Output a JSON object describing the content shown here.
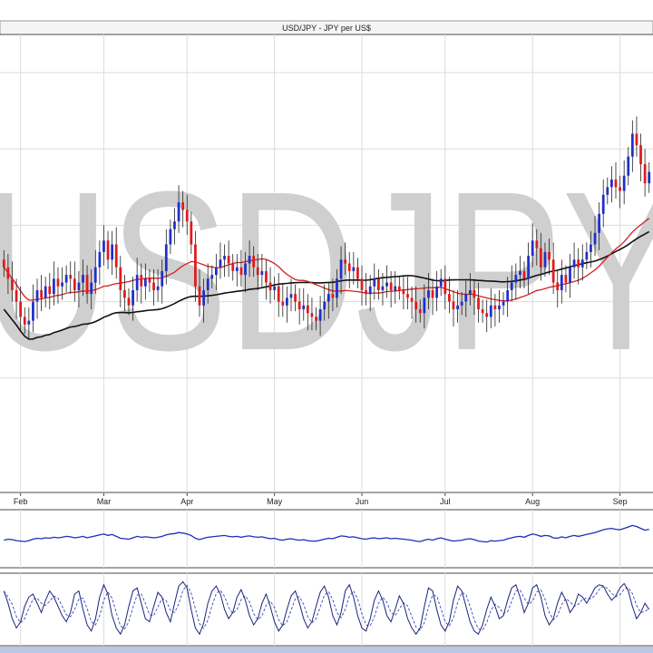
{
  "title": "USD/JPY - JPY per US$",
  "watermark": "USDJPY",
  "colors": {
    "background": "#ffffff",
    "frame": "#4a4a4a",
    "grid": "#dcdcdc",
    "bull": "#1f2fcc",
    "bear": "#e01b1b",
    "wick": "#222222",
    "ma_fast": "#d42020",
    "ma_slow": "#111111",
    "watermark": "#cfcfcf",
    "rsi": "#1d2db8",
    "stoch_k": "#1a237e",
    "stoch_d": "#3949ab",
    "bottom_bar": "#b9c7e6"
  },
  "chart_data": [
    {
      "type": "candlestick",
      "title": "USD/JPY - JPY per US$",
      "x_tick_labels": [
        "Feb",
        "Mar",
        "Apr",
        "May",
        "Jun",
        "Jul",
        "Aug",
        "Sep"
      ],
      "x_tick_index": [
        4,
        24,
        44,
        65,
        86,
        106,
        127,
        148
      ],
      "grid": true,
      "ylim": [
        96,
        108
      ],
      "series_close": [
        101.9,
        101.6,
        101.3,
        101.0,
        100.6,
        100.4,
        100.5,
        101.0,
        101.3,
        101.1,
        101.4,
        101.2,
        101.6,
        101.4,
        101.5,
        101.7,
        101.6,
        101.3,
        101.5,
        101.7,
        101.2,
        101.5,
        101.9,
        102.3,
        102.6,
        102.1,
        102.5,
        101.9,
        101.3,
        101.1,
        100.9,
        101.3,
        101.7,
        101.4,
        101.6,
        101.5,
        101.3,
        101.4,
        101.8,
        102.5,
        102.9,
        103.1,
        103.6,
        103.4,
        103.1,
        102.5,
        101.4,
        100.9,
        101.3,
        101.6,
        101.7,
        101.9,
        102.1,
        102.2,
        102.0,
        101.8,
        101.9,
        101.7,
        102.0,
        102.2,
        101.9,
        101.7,
        101.8,
        101.5,
        101.3,
        101.4,
        101.0,
        100.9,
        101.1,
        101.2,
        101.0,
        100.8,
        100.9,
        100.7,
        100.6,
        100.5,
        100.8,
        101.0,
        101.2,
        101.1,
        101.6,
        102.1,
        102.0,
        101.8,
        101.9,
        101.6,
        101.3,
        101.2,
        101.4,
        101.6,
        101.3,
        101.4,
        101.5,
        101.3,
        101.4,
        101.3,
        101.2,
        101.1,
        101.0,
        100.8,
        100.7,
        101.1,
        101.3,
        101.1,
        101.4,
        101.6,
        101.2,
        101.0,
        100.8,
        100.9,
        101.0,
        101.2,
        101.3,
        101.1,
        100.8,
        100.7,
        100.6,
        100.9,
        100.8,
        100.9,
        101.0,
        101.3,
        101.5,
        101.7,
        101.8,
        101.6,
        102.2,
        102.6,
        102.4,
        101.9,
        102.3,
        102.1,
        101.5,
        101.3,
        101.7,
        101.5,
        101.9,
        102.1,
        101.9,
        102.1,
        102.3,
        102.5,
        102.8,
        103.3,
        103.8,
        104.0,
        104.2,
        104.0,
        103.9,
        104.3,
        104.8,
        105.4,
        105.1,
        104.6,
        104.1,
        104.4
      ]
    },
    {
      "type": "line",
      "name": "RSI",
      "ylim": [
        0,
        100
      ],
      "values": [
        47,
        49,
        48,
        46,
        45,
        44,
        46,
        49,
        51,
        50,
        52,
        51,
        53,
        52,
        53,
        55,
        54,
        52,
        53,
        55,
        52,
        54,
        56,
        58,
        60,
        57,
        59,
        55,
        51,
        50,
        49,
        52,
        55,
        53,
        54,
        53,
        52,
        53,
        55,
        58,
        60,
        61,
        63,
        62,
        60,
        57,
        51,
        48,
        51,
        53,
        54,
        55,
        56,
        57,
        55,
        54,
        55,
        53,
        55,
        56,
        54,
        53,
        54,
        52,
        50,
        51,
        48,
        47,
        49,
        50,
        48,
        47,
        48,
        46,
        45,
        45,
        47,
        49,
        51,
        50,
        53,
        56,
        55,
        53,
        54,
        52,
        50,
        49,
        51,
        52,
        50,
        51,
        52,
        50,
        51,
        50,
        49,
        48,
        47,
        45,
        44,
        47,
        49,
        47,
        50,
        52,
        49,
        47,
        45,
        46,
        47,
        49,
        50,
        48,
        45,
        44,
        43,
        46,
        45,
        46,
        47,
        50,
        52,
        54,
        55,
        53,
        57,
        60,
        58,
        55,
        57,
        56,
        52,
        51,
        54,
        52,
        55,
        57,
        55,
        57,
        59,
        61,
        63,
        66,
        69,
        71,
        72,
        70,
        69,
        72,
        75,
        78,
        76,
        72,
        68,
        70
      ]
    },
    {
      "type": "line",
      "name": "Stochastic",
      "ylim": [
        0,
        100
      ],
      "values": [
        80,
        60,
        35,
        20,
        30,
        55,
        70,
        75,
        60,
        45,
        65,
        80,
        70,
        55,
        40,
        30,
        45,
        75,
        80,
        50,
        25,
        15,
        35,
        70,
        90,
        75,
        40,
        20,
        10,
        25,
        55,
        80,
        85,
        60,
        35,
        30,
        55,
        78,
        70,
        45,
        30,
        60,
        88,
        95,
        85,
        50,
        20,
        10,
        28,
        60,
        80,
        88,
        75,
        50,
        35,
        45,
        70,
        82,
        65,
        40,
        25,
        35,
        60,
        75,
        55,
        30,
        15,
        25,
        50,
        72,
        80,
        60,
        35,
        20,
        30,
        55,
        78,
        88,
        70,
        40,
        25,
        45,
        80,
        90,
        70,
        40,
        20,
        15,
        35,
        65,
        80,
        65,
        40,
        30,
        50,
        72,
        60,
        35,
        20,
        10,
        20,
        55,
        85,
        80,
        50,
        25,
        15,
        30,
        65,
        88,
        80,
        55,
        30,
        15,
        10,
        25,
        50,
        70,
        55,
        35,
        40,
        65,
        85,
        90,
        70,
        45,
        60,
        85,
        90,
        70,
        40,
        25,
        35,
        60,
        78,
        65,
        45,
        55,
        75,
        70,
        60,
        72,
        85,
        90,
        88,
        75,
        65,
        72,
        85,
        92,
        80,
        55,
        35,
        45,
        60,
        50
      ]
    }
  ]
}
